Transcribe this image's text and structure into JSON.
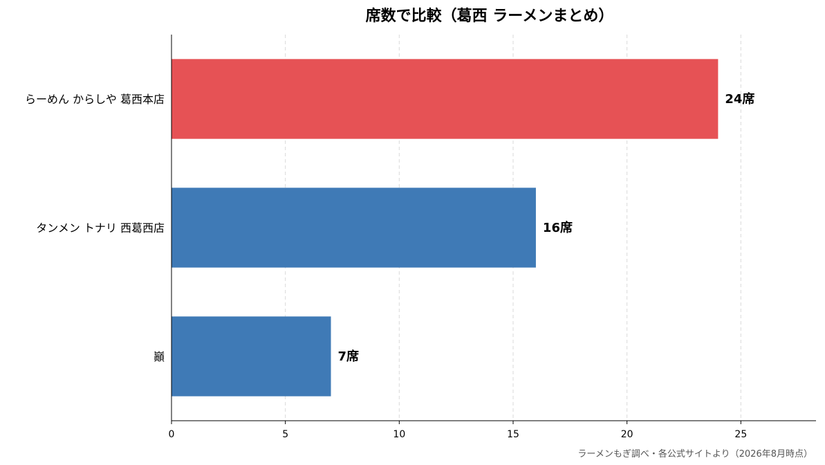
{
  "chart_data": {
    "type": "bar",
    "orientation": "horizontal",
    "title": "席数で比較（葛西 ラーメンまとめ）",
    "categories": [
      "らーめん からしや 葛西本店",
      "タンメン トナリ 西葛西店",
      "巓"
    ],
    "values": [
      24,
      16,
      7
    ],
    "value_labels": [
      "24席",
      "16席",
      "7席"
    ],
    "bar_colors": [
      "#e65255",
      "#3f7ab6",
      "#3f7ab6"
    ],
    "xlim": [
      0,
      28.3
    ],
    "xticks": [
      0,
      5,
      10,
      15,
      20,
      25
    ],
    "grid": "vertical dashed",
    "xlabel": "",
    "ylabel": ""
  },
  "source": "ラーメンもぎ調べ・各公式サイトより（2026年8月時点）"
}
